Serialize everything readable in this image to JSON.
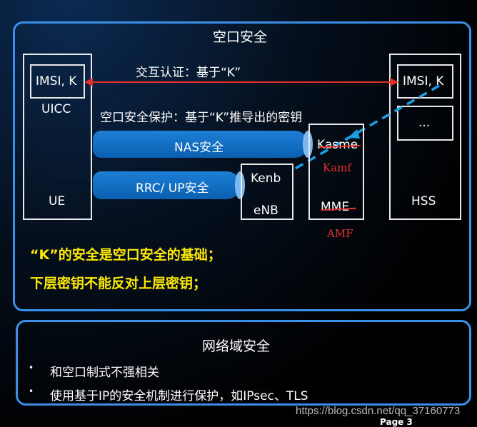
{
  "top": {
    "title": "空口安全",
    "mutual_auth": "交互认证：基于“K”",
    "protection": "空口安全保护：基于“K”推导出的密钥",
    "ue": {
      "sim": "IMSI, K",
      "uicc": "UICC",
      "label": "UE"
    },
    "hss": {
      "sim": "IMSI, K",
      "more": "...",
      "label": "HSS"
    },
    "nas": "NAS安全",
    "rrc": "RRC/ UP安全",
    "enb": {
      "key": "Kenb",
      "label": "eNB"
    },
    "mme": {
      "key": "Kasme",
      "key_new": "Kamf",
      "label": "MME",
      "label_new": "AMF"
    },
    "notes": [
      "“K”的安全是空口安全的基础；",
      "下层密钥不能反对上层密钥；"
    ]
  },
  "bottom": {
    "title": "网络域安全",
    "bullets": [
      "和空口制式不强相关",
      "使用基于IP的安全机制进行保护，如IPsec、TLS"
    ],
    "bullet_char": "•"
  },
  "watermark": "https://blog.csdn.net/qq_37160773",
  "page": "Page 3",
  "colors": {
    "accent": "#3a8fe8",
    "annotation": "#e0302a",
    "highlight": "#ffea00"
  }
}
